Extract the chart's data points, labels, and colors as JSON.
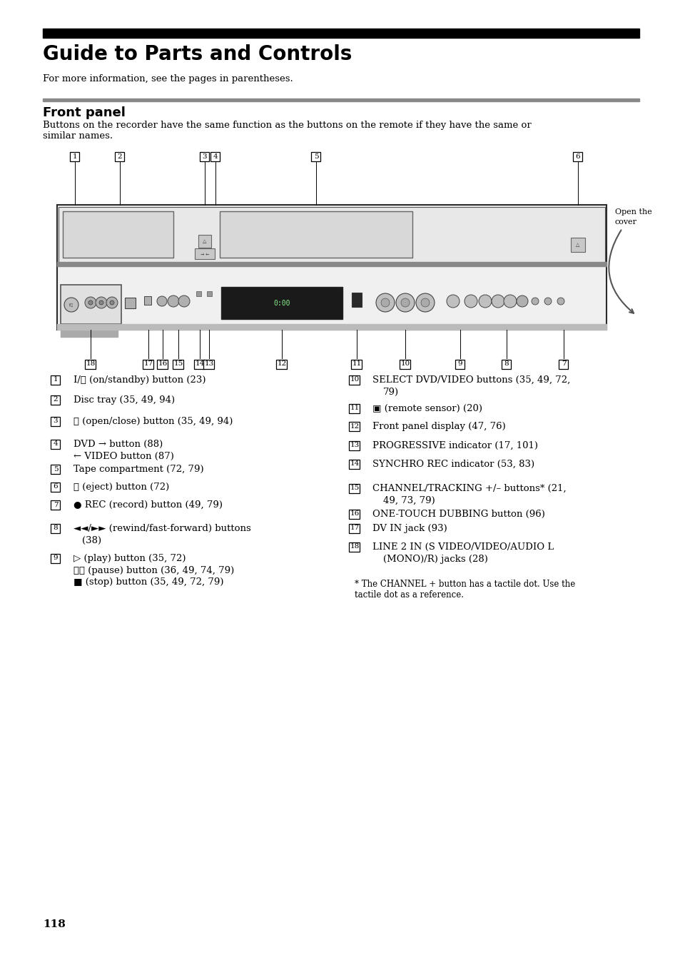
{
  "title": "Guide to Parts and Controls",
  "subtitle": "Front panel",
  "intro_text": "For more information, see the pages in parentheses.",
  "body_text1": "Buttons on the recorder have the same function as the buttons on the remote if they have the same or",
  "body_text2": "similar names.",
  "open_cover_text1": "Open the",
  "open_cover_text2": "cover",
  "page_number": "118",
  "left_items": [
    {
      "num": "1",
      "lines": [
        "I/⏻ (on/standby) button (23)"
      ]
    },
    {
      "num": "2",
      "lines": [
        "Disc tray (35, 49, 94)"
      ]
    },
    {
      "num": "3",
      "lines": [
        "≙ (open/close) button (35, 49, 94)"
      ]
    },
    {
      "num": "4",
      "lines": [
        "DVD → button (88)",
        "  ← VIDEO button (87)"
      ]
    },
    {
      "num": "5",
      "lines": [
        "Tape compartment (72, 79)"
      ]
    },
    {
      "num": "6",
      "lines": [
        "≙ (eject) button (72)"
      ]
    },
    {
      "num": "7",
      "lines": [
        "● REC (record) button (49, 79)"
      ]
    },
    {
      "num": "8",
      "lines": [
        "◄◄/►► (rewind/fast-forward) buttons",
        "(38)"
      ]
    },
    {
      "num": "9",
      "lines": [
        "▷ (play) button (35, 72)",
        "    ❚❚ (pause) button (36, 49, 74, 79)",
        "    ■ (stop) button (35, 49, 72, 79)"
      ]
    }
  ],
  "right_items": [
    {
      "num": "10",
      "lines": [
        "SELECT DVD/VIDEO buttons (35, 49, 72,",
        "79)"
      ]
    },
    {
      "num": "11",
      "lines": [
        "▣ (remote sensor) (20)"
      ]
    },
    {
      "num": "12",
      "lines": [
        "Front panel display (47, 76)"
      ]
    },
    {
      "num": "13",
      "lines": [
        "PROGRESSIVE indicator (17, 101)"
      ]
    },
    {
      "num": "14",
      "lines": [
        "SYNCHRO REC indicator (53, 83)"
      ]
    },
    {
      "num": "15",
      "lines": [
        "CHANNEL/TRACKING +/– buttons* (21,",
        "49, 73, 79)"
      ]
    },
    {
      "num": "16",
      "lines": [
        "ONE-TOUCH DUBBING button (96)"
      ]
    },
    {
      "num": "17",
      "lines": [
        "DV IN jack (93)"
      ]
    },
    {
      "num": "18",
      "lines": [
        "LINE 2 IN (S VIDEO/VIDEO/AUDIO L",
        "(MONO)/R) jacks (28)"
      ]
    }
  ],
  "footnote1": "* The CHANNEL + button has a tactile dot. Use the",
  "footnote2": "  tactile dot as a reference.",
  "bg_color": "#ffffff",
  "text_color": "#000000",
  "title_bar_color": "#000000",
  "section_bar_color": "#808080"
}
